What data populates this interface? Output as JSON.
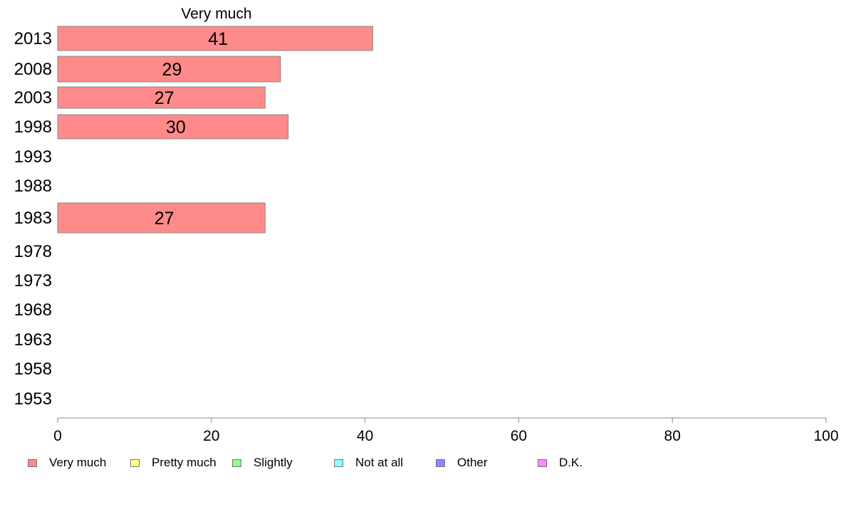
{
  "chart_data": {
    "type": "bar",
    "orientation": "horizontal",
    "title": "Very much",
    "categories": [
      "2013",
      "2008",
      "2003",
      "1998",
      "1993",
      "1988",
      "1983",
      "1978",
      "1973",
      "1968",
      "1963",
      "1958",
      "1953"
    ],
    "series": [
      {
        "name": "Very much",
        "values": [
          41,
          29,
          27,
          30,
          null,
          null,
          27,
          null,
          null,
          null,
          null,
          null,
          null
        ]
      }
    ],
    "data_labels": [
      "41",
      "29",
      "27",
      "30",
      "",
      "",
      "27",
      "",
      "",
      "",
      "",
      "",
      ""
    ],
    "xlim": [
      0,
      100
    ],
    "xticks": [
      0,
      20,
      40,
      60,
      80,
      100
    ],
    "grid": false,
    "legend_placement": "bottom"
  },
  "legend": [
    {
      "label": "Very much",
      "color": "#ff8a8a"
    },
    {
      "label": "Pretty much",
      "color": "#ffff8a"
    },
    {
      "label": "Slightly",
      "color": "#8aff8a"
    },
    {
      "label": "Not at all",
      "color": "#8affff"
    },
    {
      "label": "Other",
      "color": "#8a8aff"
    },
    {
      "label": "D.K.",
      "color": "#ff8aff"
    }
  ]
}
